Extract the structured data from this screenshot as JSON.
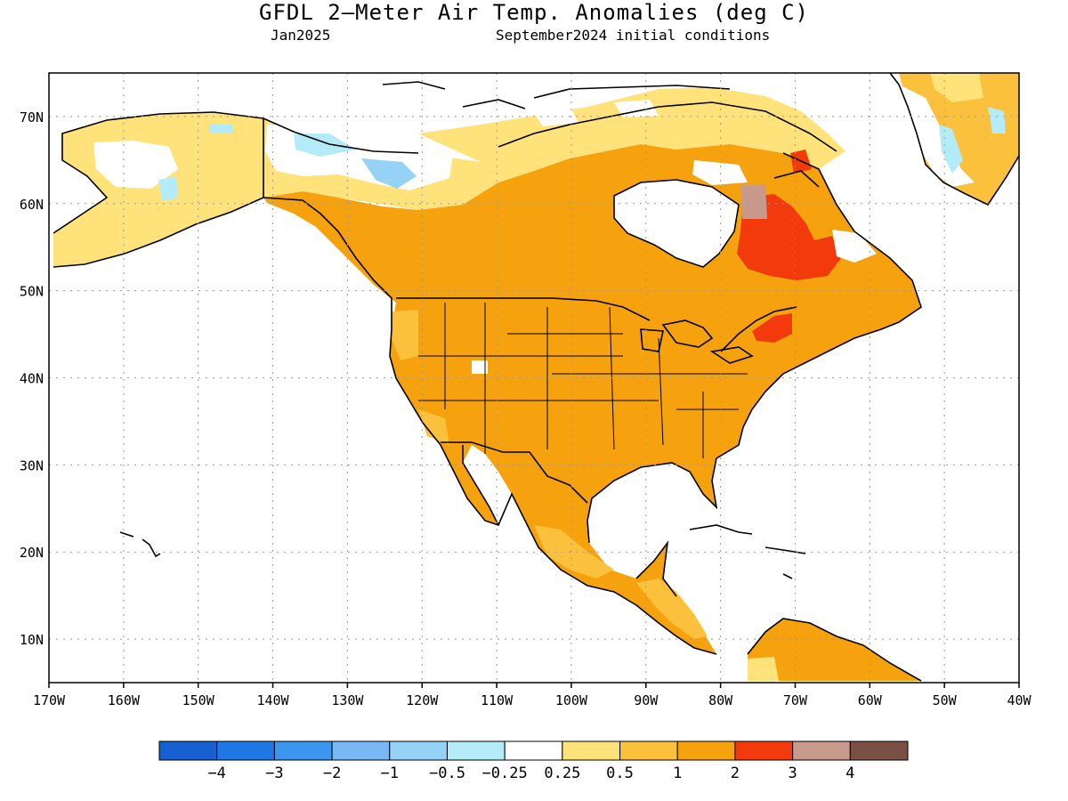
{
  "title": "GFDL 2—Meter Air Temp. Anomalies (deg C)",
  "subtitle_left": "Jan2025",
  "subtitle_right": "September2024 initial conditions",
  "map": {
    "lat_range": [
      5,
      75
    ],
    "lon_range": [
      -170,
      -40
    ],
    "lat_labels": [
      "10N",
      "20N",
      "30N",
      "40N",
      "50N",
      "60N",
      "70N"
    ],
    "lon_labels": [
      "170W",
      "160W",
      "150W",
      "140W",
      "130W",
      "120W",
      "110W",
      "100W",
      "90W",
      "80W",
      "70W",
      "60W",
      "50W",
      "40W"
    ],
    "anomaly_regions": [
      {
        "label": "contiguous United States and Canada",
        "category": "1 to 2",
        "color": "#f6a10e"
      },
      {
        "label": "Mexico",
        "category": "1 to 2",
        "color": "#f6a10e"
      },
      {
        "label": "northern South America",
        "category": "1 to 2",
        "color": "#f6a10e"
      },
      {
        "label": "Quebec / Labrador",
        "category": "2 to 3",
        "color": "#f23a0c"
      },
      {
        "label": "northern Quebec spot",
        "category": "3 to 4",
        "color": "#c89a8c"
      },
      {
        "label": "Alaska interior",
        "category": "-0.5 to -0.25",
        "color": "#b3ecf8"
      },
      {
        "label": "Yukon",
        "category": "-1 to -0.5",
        "color": "#96d2f5"
      },
      {
        "label": "Greenland coast",
        "category": "-0.5 to -0.25",
        "color": "#b3ecf8"
      }
    ]
  },
  "colorbar": {
    "colors": [
      "#1660d2",
      "#1f78e6",
      "#3c96f0",
      "#78b9f5",
      "#96d2f5",
      "#b3ecf8",
      "#ffffff",
      "#ffe27a",
      "#fcc13c",
      "#f6a10e",
      "#f23a0c",
      "#c89a8c",
      "#7a5044"
    ],
    "labels": [
      "−4",
      "−3",
      "−2",
      "−1",
      "−0.5",
      "−0.25",
      "0.25",
      "0.5",
      "1",
      "2",
      "3",
      "4"
    ]
  }
}
